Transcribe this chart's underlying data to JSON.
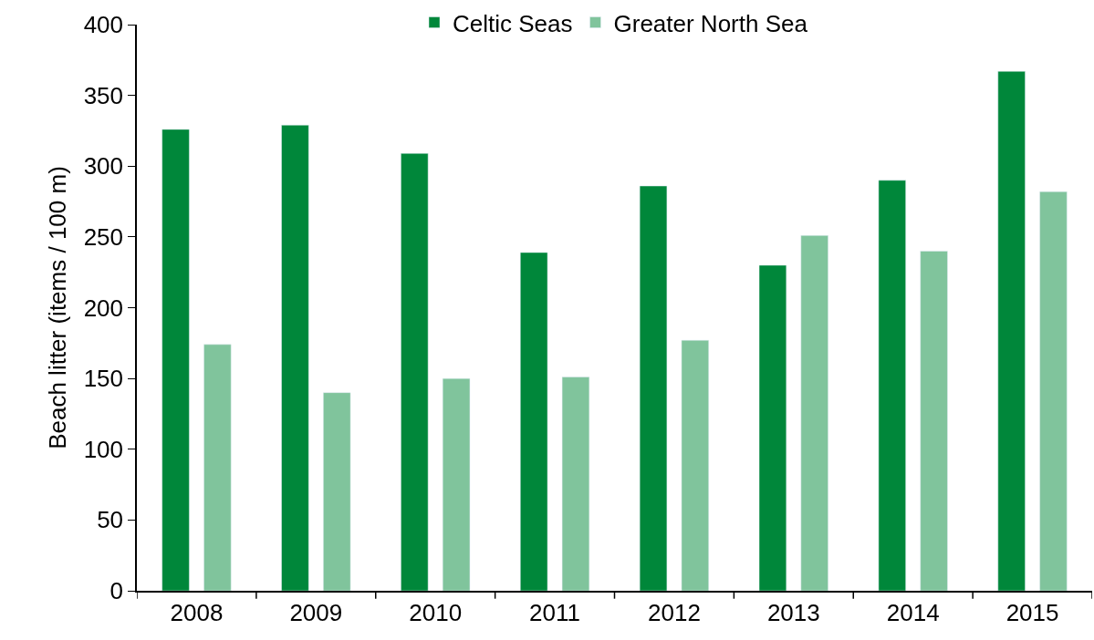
{
  "chart_data": {
    "type": "bar",
    "ylabel": "Beach litter (items / 100 m)",
    "categories": [
      "2008",
      "2009",
      "2010",
      "2011",
      "2012",
      "2013",
      "2014",
      "2015"
    ],
    "series": [
      {
        "name": "Celtic Seas",
        "color": "#00873a",
        "values": [
          326,
          329,
          309,
          239,
          286,
          230,
          290,
          367
        ]
      },
      {
        "name": "Greater North Sea",
        "color": "#80c49c",
        "values": [
          174,
          140,
          150,
          151,
          177,
          251,
          240,
          282
        ]
      }
    ],
    "ylim": [
      0,
      400
    ],
    "yticks": [
      0,
      50,
      100,
      150,
      200,
      250,
      300,
      350,
      400
    ],
    "legend": "top"
  }
}
